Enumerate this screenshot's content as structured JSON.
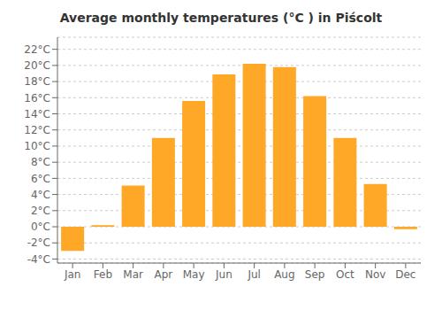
{
  "chart_data": {
    "type": "bar",
    "title": "Average monthly temperatures (°C ) in Piścolt",
    "categories": [
      "Jan",
      "Feb",
      "Mar",
      "Apr",
      "May",
      "Jun",
      "Jul",
      "Aug",
      "Sep",
      "Oct",
      "Nov",
      "Dec"
    ],
    "values": [
      -3.0,
      0.2,
      5.1,
      11.0,
      15.6,
      18.9,
      20.2,
      19.8,
      16.2,
      11.0,
      5.3,
      -0.3
    ],
    "color": "#FFA726",
    "ylim": [
      -4.5,
      23.5
    ],
    "yticks": [
      {
        "value": -4,
        "label": "-4°C"
      },
      {
        "value": -2,
        "label": "-2°C"
      },
      {
        "value": 0,
        "label": "0°C"
      },
      {
        "value": 2,
        "label": "2°C"
      },
      {
        "value": 4,
        "label": "4°C"
      },
      {
        "value": 6,
        "label": "6°C"
      },
      {
        "value": 8,
        "label": "8°C"
      },
      {
        "value": 10,
        "label": "10°C"
      },
      {
        "value": 12,
        "label": "12°C"
      },
      {
        "value": 14,
        "label": "14°C"
      },
      {
        "value": 16,
        "label": "16°C"
      },
      {
        "value": 18,
        "label": "18°C"
      },
      {
        "value": 20,
        "label": "20°C"
      },
      {
        "value": 22,
        "label": "22°C"
      }
    ],
    "grid": true
  }
}
